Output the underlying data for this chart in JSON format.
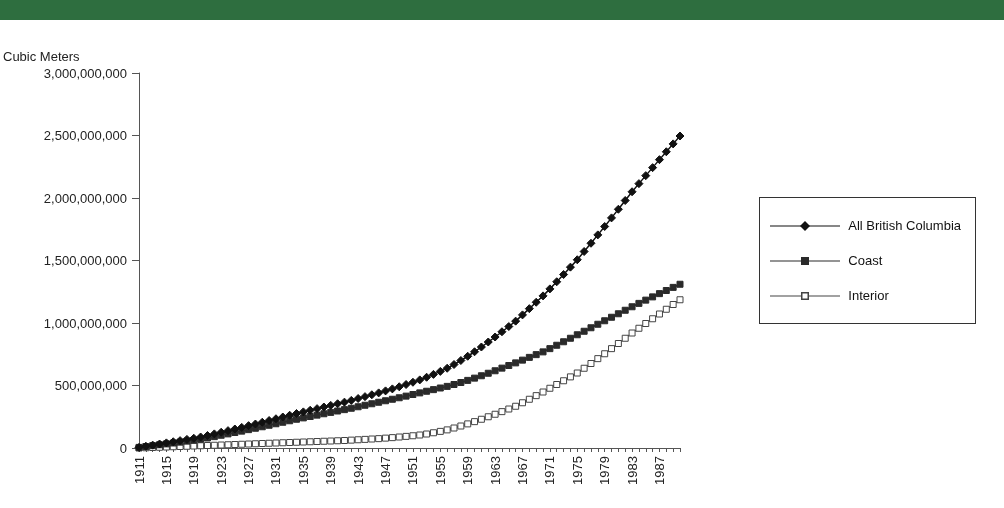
{
  "chart_data": {
    "type": "line",
    "ylabel": "Cubic Meters",
    "categories": [
      "1911",
      null,
      null,
      null,
      "1915",
      null,
      null,
      null,
      "1919",
      null,
      null,
      null,
      "1923",
      null,
      null,
      null,
      "1927",
      null,
      null,
      null,
      "1931",
      null,
      null,
      null,
      "1935",
      null,
      null,
      null,
      "1939",
      null,
      null,
      null,
      "1943",
      null,
      null,
      null,
      "1947",
      null,
      null,
      null,
      "1951",
      null,
      null,
      null,
      "1955",
      null,
      null,
      null,
      "1959",
      null,
      null,
      null,
      "1963",
      null,
      null,
      null,
      "1967",
      null,
      null,
      null,
      "1971",
      null,
      null,
      null,
      "1975",
      null,
      null,
      null,
      "1979",
      null,
      null,
      null,
      "1983",
      null,
      null,
      null,
      "1987",
      null,
      null,
      null
    ],
    "series": [
      {
        "name": "All British Columbia",
        "color": "#111111",
        "marker": "diamond",
        "values": [
          5000000,
          14000000,
          23000000,
          32000000,
          41000000,
          50000000,
          59000000,
          69000000,
          78000000,
          88000000,
          100000000,
          113000000,
          126000000,
          139000000,
          152000000,
          165000000,
          179000000,
          192000000,
          206000000,
          220000000,
          234000000,
          248000000,
          262000000,
          276000000,
          289000000,
          302000000,
          315000000,
          328000000,
          341000000,
          354000000,
          367000000,
          381000000,
          396000000,
          411000000,
          426000000,
          441000000,
          457000000,
          473000000,
          490000000,
          508000000,
          526000000,
          545000000,
          566000000,
          589000000,
          613000000,
          638000000,
          668000000,
          700000000,
          734000000,
          770000000,
          808000000,
          848000000,
          888000000,
          930000000,
          972000000,
          1015000000,
          1065000000,
          1115000000,
          1166000000,
          1217000000,
          1273000000,
          1330000000,
          1388000000,
          1447000000,
          1506000000,
          1572000000,
          1638000000,
          1705000000,
          1772000000,
          1841000000,
          1910000000,
          1980000000,
          2050000000,
          2115000000,
          2179000000,
          2243000000,
          2307000000,
          2370000000,
          2433000000,
          2496000000
        ]
      },
      {
        "name": "Coast",
        "color": "#2a2a2a",
        "marker": "square",
        "values": [
          5000000,
          12000000,
          19000000,
          26000000,
          33000000,
          40000000,
          47000000,
          55000000,
          62000000,
          70000000,
          80000000,
          91000000,
          102000000,
          113000000,
          124000000,
          135000000,
          147000000,
          158000000,
          170000000,
          182000000,
          194000000,
          206000000,
          218000000,
          230000000,
          241000000,
          252000000,
          263000000,
          274000000,
          285000000,
          296000000,
          307000000,
          318000000,
          330000000,
          342000000,
          354000000,
          366000000,
          378000000,
          390000000,
          402000000,
          415000000,
          428000000,
          441000000,
          454000000,
          467000000,
          480000000,
          493000000,
          508000000,
          524000000,
          541000000,
          559000000,
          578000000,
          598000000,
          618000000,
          639000000,
          660000000,
          681000000,
          703000000,
          725000000,
          747000000,
          769000000,
          795000000,
          822000000,
          850000000,
          878000000,
          906000000,
          934000000,
          962000000,
          990000000,
          1018000000,
          1046000000,
          1074000000,
          1102000000,
          1130000000,
          1157000000,
          1183000000,
          1209000000,
          1235000000,
          1260000000,
          1285000000,
          1310000000
        ]
      },
      {
        "name": "Interior",
        "color": "#444444",
        "marker": "square",
        "values": [
          0,
          2000000,
          4000000,
          6000000,
          8000000,
          10000000,
          12000000,
          14000000,
          16000000,
          18000000,
          20000000,
          22000000,
          24000000,
          26000000,
          28000000,
          30000000,
          32000000,
          34000000,
          36000000,
          38000000,
          40000000,
          42000000,
          44000000,
          46000000,
          48000000,
          50000000,
          52000000,
          54000000,
          56000000,
          58000000,
          60000000,
          63000000,
          66000000,
          69000000,
          72000000,
          75000000,
          79000000,
          83000000,
          88000000,
          93000000,
          98000000,
          104000000,
          112000000,
          122000000,
          133000000,
          145000000,
          160000000,
          176000000,
          193000000,
          211000000,
          230000000,
          250000000,
          270000000,
          291000000,
          312000000,
          334000000,
          362000000,
          390000000,
          419000000,
          448000000,
          478000000,
          508000000,
          538000000,
          569000000,
          600000000,
          638000000,
          676000000,
          715000000,
          754000000,
          795000000,
          836000000,
          878000000,
          920000000,
          958000000,
          996000000,
          1034000000,
          1072000000,
          1110000000,
          1148000000,
          1186000000
        ]
      }
    ],
    "ylim": [
      0,
      3000000000
    ],
    "yticks": [
      0,
      {
        "value": 500000000,
        "label": "500,000,000"
      },
      {
        "value": 1000000000,
        "label": "1,000,000,000"
      },
      {
        "value": 1500000000,
        "label": "1,500,000,000"
      },
      {
        "value": 2000000000,
        "label": "2,000,000,000"
      },
      {
        "value": 2500000000,
        "label": "2,500,000,000"
      },
      {
        "value": 3000000000,
        "label": "3,000,000,000"
      }
    ],
    "grid": false,
    "legend": "right"
  }
}
